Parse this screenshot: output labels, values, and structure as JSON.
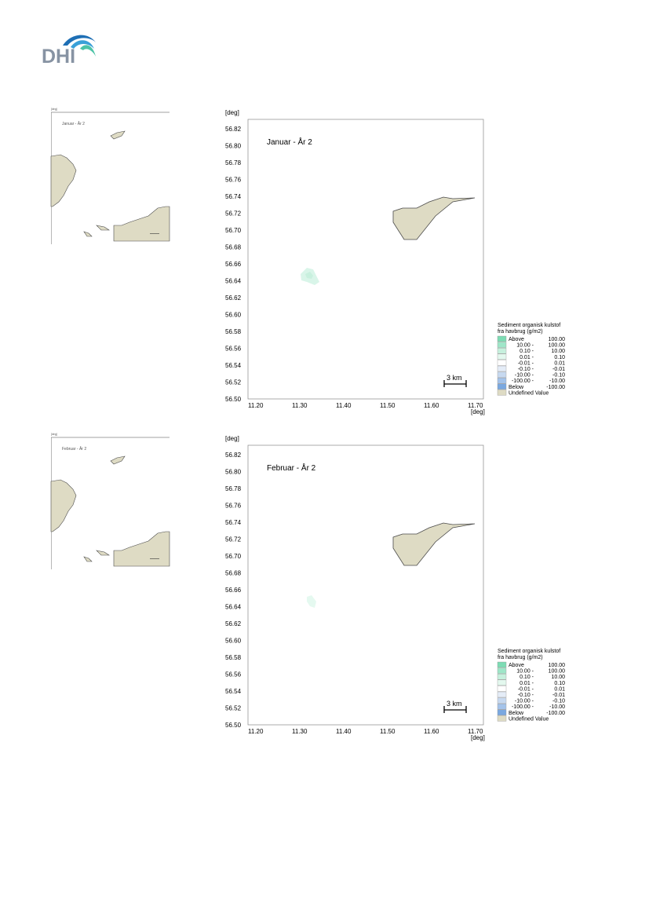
{
  "logo": {
    "text": "DHI",
    "brand_color": "#8793a3",
    "swoosh_colors": [
      "#1e6fb5",
      "#3aa0d8",
      "#4cc3a7"
    ]
  },
  "colors": {
    "land": "#dedbc4",
    "land_stroke": "#4a4a4a",
    "sediment_high": "#d6f5e8",
    "sediment_low": "#eafaf3"
  },
  "axis": {
    "unit_label": "[deg]",
    "y_ticks": [
      "56.82",
      "56.80",
      "56.78",
      "56.76",
      "56.74",
      "56.72",
      "56.70",
      "56.68",
      "56.66",
      "56.64",
      "56.62",
      "56.60",
      "56.58",
      "56.56",
      "56.54",
      "56.52",
      "56.50"
    ],
    "x_ticks": [
      "11.20",
      "11.30",
      "11.40",
      "11.50",
      "11.60",
      "11.70"
    ]
  },
  "scale_bar": {
    "label": "3 km"
  },
  "legend": {
    "title_line1": "Sediment organisk kulstof",
    "title_line2": "fra havbrug (g/m2)",
    "entries": [
      {
        "label": "Above",
        "low": "",
        "high": "100.00",
        "color": "#7ddcb4"
      },
      {
        "label": "",
        "low": "10.00 -",
        "high": "100.00",
        "color": "#9ee6c8"
      },
      {
        "label": "",
        "low": "0.10 -",
        "high": "10.00",
        "color": "#c6f0dd"
      },
      {
        "label": "",
        "low": "0.01 -",
        "high": "0.10",
        "color": "#e3f8ee"
      },
      {
        "label": "",
        "low": "-0.01 -",
        "high": "0.01",
        "color": "#ffffff"
      },
      {
        "label": "",
        "low": "-0.10 -",
        "high": "-0.01",
        "color": "#e4ecf7"
      },
      {
        "label": "",
        "low": "-10.00 -",
        "high": "-0.10",
        "color": "#c7d9f0"
      },
      {
        "label": "",
        "low": "-100.00 -",
        "high": "-10.00",
        "color": "#a4c3ea"
      },
      {
        "label": "Below",
        "low": "",
        "high": "-100.00",
        "color": "#7aa8e0"
      },
      {
        "label": "Undefined Value",
        "low": "",
        "high": "",
        "color": "#dedbc4"
      }
    ]
  },
  "maps": [
    {
      "title": "Januar - År 2",
      "overview_title": "Januar - År 2"
    },
    {
      "title": "Februar - År 2",
      "overview_title": "Februar - År 2"
    }
  ]
}
